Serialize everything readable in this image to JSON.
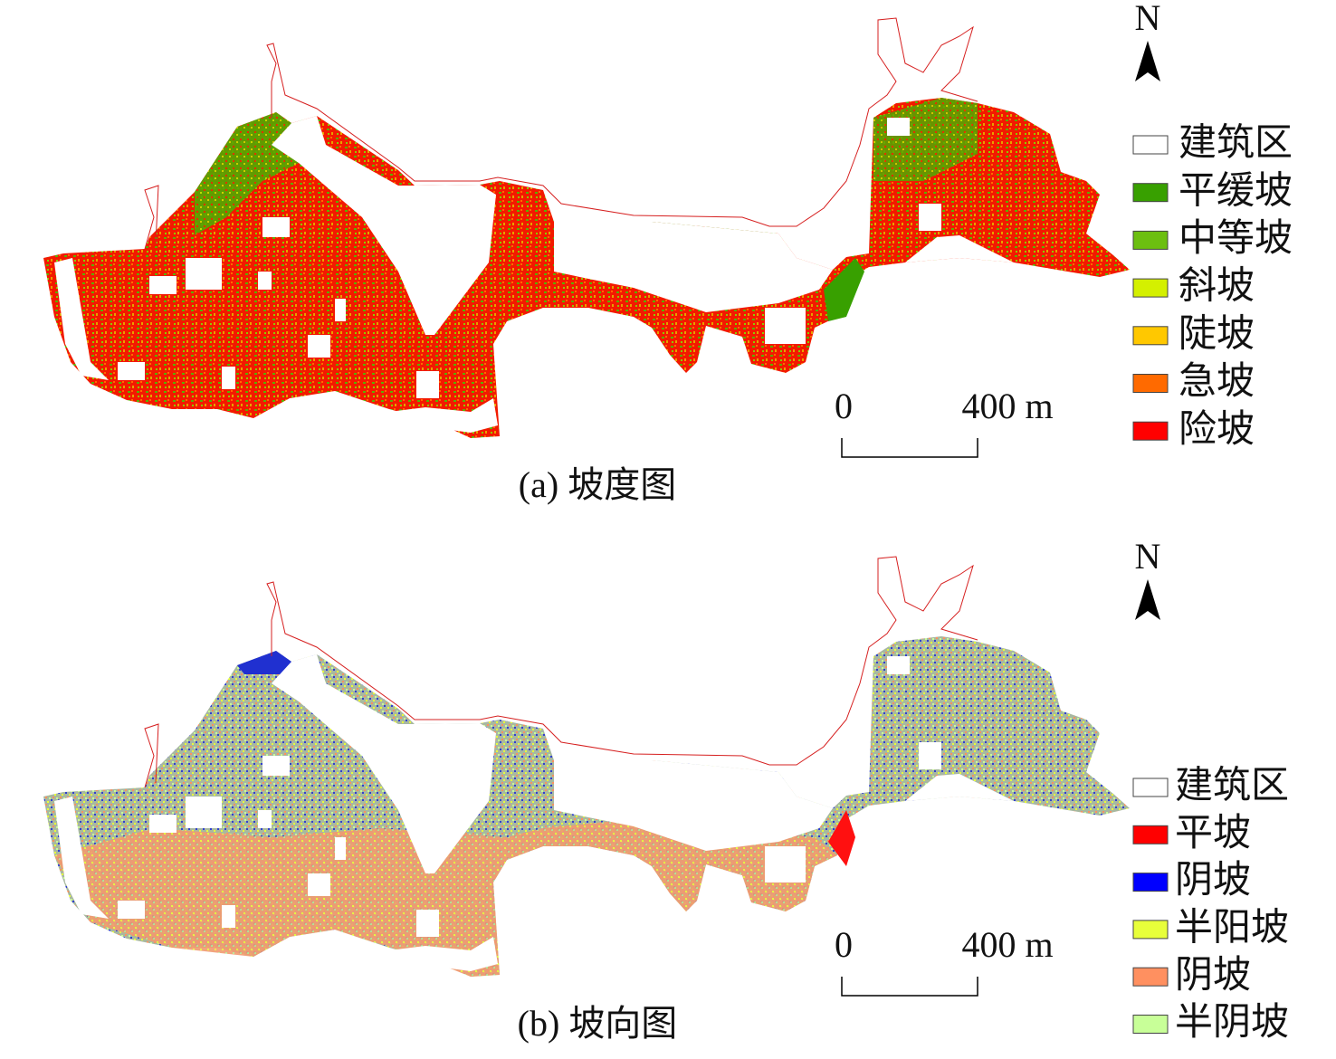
{
  "panels": [
    {
      "caption": "(a) 坡度图",
      "north": "N",
      "scale_bar": {
        "start": "0",
        "end": "400 m"
      },
      "legend": [
        {
          "label": "建筑区",
          "color": "#ffffff"
        },
        {
          "label": "平缓坡",
          "color": "#38a000"
        },
        {
          "label": "中等坡",
          "color": "#6cbf10"
        },
        {
          "label": "斜坡",
          "color": "#d4f000"
        },
        {
          "label": "陡坡",
          "color": "#ffc800"
        },
        {
          "label": "急坡",
          "color": "#ff6a00"
        },
        {
          "label": "险坡",
          "color": "#ff0000"
        }
      ]
    },
    {
      "caption": "(b) 坡向图",
      "north": "N",
      "scale_bar": {
        "start": "0",
        "end": "400 m"
      },
      "legend": [
        {
          "label": "建筑区",
          "color": "#ffffff"
        },
        {
          "label": "平坡",
          "color": "#ff0000"
        },
        {
          "label": "阴坡",
          "color": "#0000ff"
        },
        {
          "label": "半阳坡",
          "color": "#e8ff3a"
        },
        {
          "label": "阴坡",
          "color": "#ff9060"
        },
        {
          "label": "半阴坡",
          "color": "#c8ff98"
        }
      ]
    }
  ]
}
